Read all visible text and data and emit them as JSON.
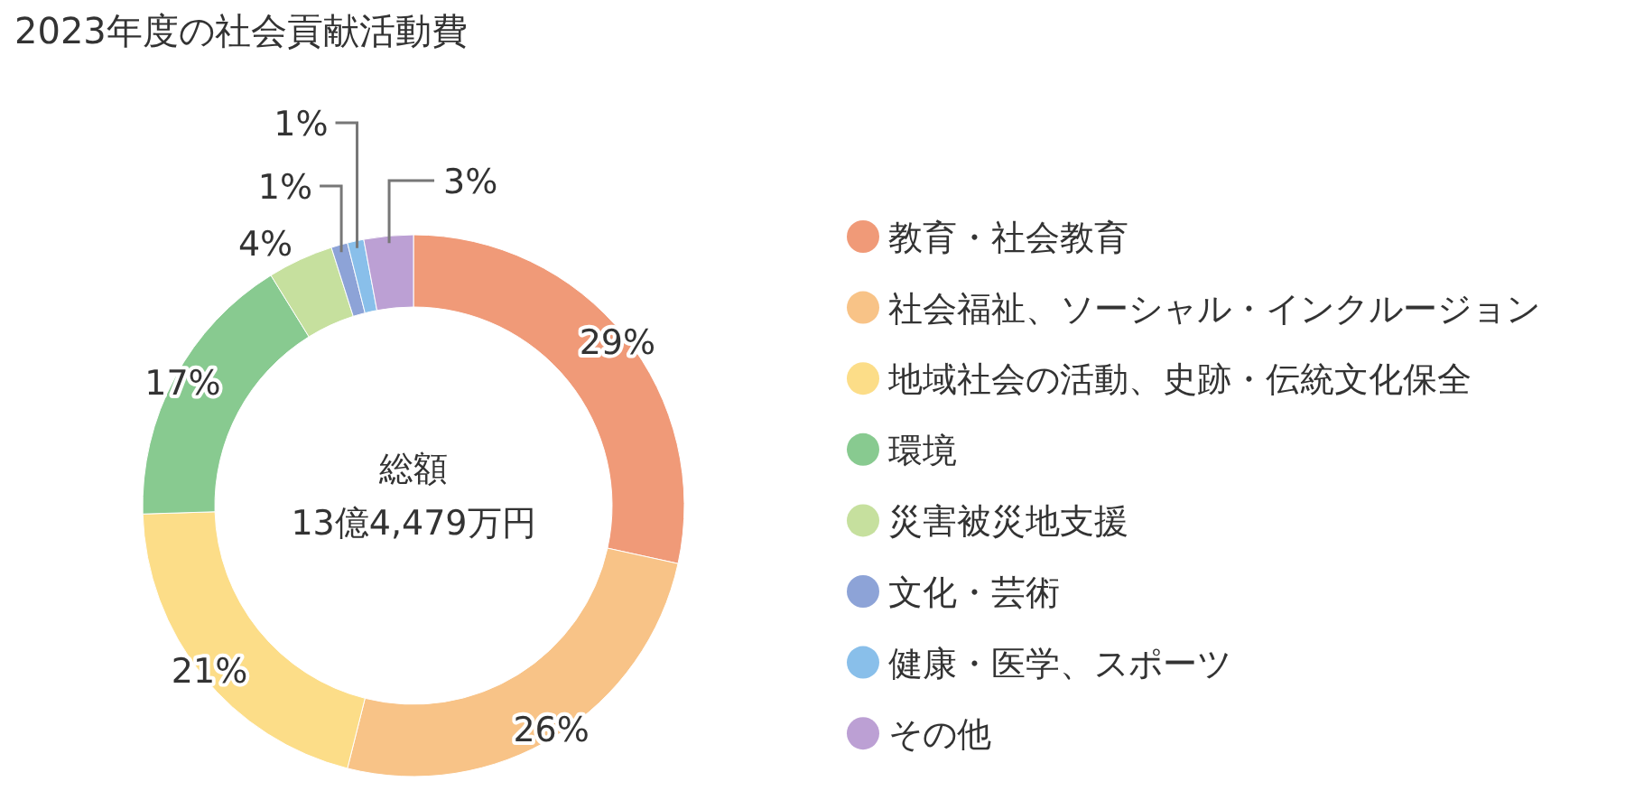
{
  "chart_data": {
    "type": "donut",
    "title": "2023年度の社会貢献活動費",
    "categories": [
      "教育・社会教育",
      "社会福祉、ソーシャル・インクルージョン",
      "地域社会の活動、史跡・伝統文化保全",
      "環境",
      "災害被災地支援",
      "文化・芸術",
      "健康・医学、スポーツ",
      "その他"
    ],
    "values": [
      29,
      26,
      21,
      17,
      4,
      1,
      1,
      3
    ],
    "value_labels": [
      "29%",
      "26%",
      "21%",
      "17%",
      "4%",
      "1%",
      "1%",
      "3%"
    ],
    "colors": [
      "#f09a78",
      "#f8c387",
      "#fcdd88",
      "#88ca90",
      "#c6e09e",
      "#8da3d7",
      "#89bfea",
      "#bca0d4"
    ],
    "legend": "right",
    "annotations": [
      "総額",
      "13億4,479万円"
    ]
  }
}
